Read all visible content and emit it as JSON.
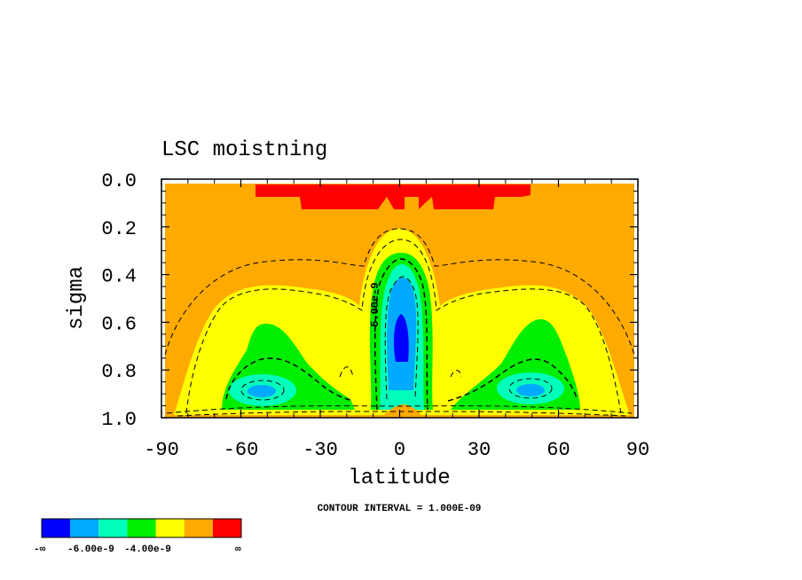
{
  "chart_data": {
    "type": "contour",
    "title": "LSC moistning",
    "xlabel": "latitude",
    "ylabel": "sigma",
    "xlim": [
      -90,
      90
    ],
    "ylim": [
      1.0,
      0.0
    ],
    "x_ticks": [
      "-90",
      "-60",
      "-30",
      "0",
      "30",
      "60",
      "90"
    ],
    "y_ticks": [
      "0.0",
      "0.2",
      "0.4",
      "0.6",
      "0.8",
      "1.0"
    ],
    "contour_label": "-5.00e-9",
    "footer": "CONTOUR INTERVAL = 1.000E-09",
    "colorbar": {
      "colors": [
        "#0000ff",
        "#00aaff",
        "#00ffbb",
        "#00ee00",
        "#ffff00",
        "#ffaa00",
        "#ff0000"
      ],
      "labels": [
        "-∞",
        "-6.00e-9",
        "-4.00e-9",
        "∞"
      ]
    }
  }
}
